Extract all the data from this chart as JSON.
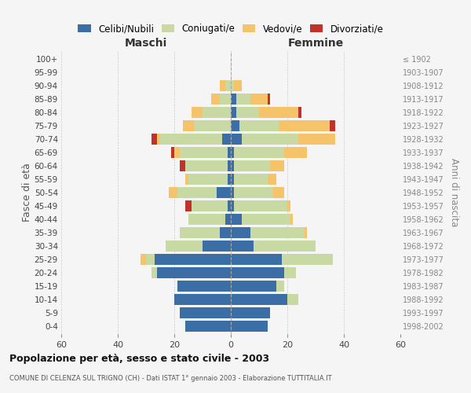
{
  "age_groups": [
    "0-4",
    "5-9",
    "10-14",
    "15-19",
    "20-24",
    "25-29",
    "30-34",
    "35-39",
    "40-44",
    "45-49",
    "50-54",
    "55-59",
    "60-64",
    "65-69",
    "70-74",
    "75-79",
    "80-84",
    "85-89",
    "90-94",
    "95-99",
    "100+"
  ],
  "birth_years": [
    "1998-2002",
    "1993-1997",
    "1988-1992",
    "1983-1987",
    "1978-1982",
    "1973-1977",
    "1968-1972",
    "1963-1967",
    "1958-1962",
    "1953-1957",
    "1948-1952",
    "1943-1947",
    "1938-1942",
    "1933-1937",
    "1928-1932",
    "1923-1927",
    "1918-1922",
    "1913-1917",
    "1908-1912",
    "1903-1907",
    "≤ 1902"
  ],
  "male": {
    "celibi": [
      16,
      18,
      20,
      19,
      26,
      27,
      10,
      4,
      2,
      1,
      5,
      1,
      1,
      1,
      3,
      0,
      0,
      0,
      0,
      0,
      0
    ],
    "coniugati": [
      0,
      0,
      0,
      0,
      2,
      3,
      13,
      14,
      13,
      13,
      14,
      14,
      15,
      17,
      22,
      13,
      10,
      4,
      2,
      0,
      0
    ],
    "vedovi": [
      0,
      0,
      0,
      0,
      0,
      2,
      0,
      0,
      0,
      0,
      3,
      1,
      0,
      2,
      1,
      4,
      4,
      3,
      2,
      0,
      0
    ],
    "divorziati": [
      0,
      0,
      0,
      0,
      0,
      0,
      0,
      0,
      0,
      2,
      0,
      0,
      2,
      1,
      2,
      0,
      0,
      0,
      0,
      0,
      0
    ]
  },
  "female": {
    "nubili": [
      13,
      14,
      20,
      16,
      19,
      18,
      8,
      7,
      4,
      1,
      1,
      1,
      1,
      1,
      4,
      3,
      2,
      2,
      0,
      0,
      0
    ],
    "coniugate": [
      0,
      0,
      4,
      3,
      4,
      18,
      22,
      19,
      17,
      19,
      14,
      12,
      13,
      18,
      20,
      14,
      8,
      5,
      1,
      0,
      0
    ],
    "vedove": [
      0,
      0,
      0,
      0,
      0,
      0,
      0,
      1,
      1,
      1,
      4,
      3,
      5,
      8,
      13,
      18,
      14,
      6,
      3,
      0,
      0
    ],
    "divorziate": [
      0,
      0,
      0,
      0,
      0,
      0,
      0,
      0,
      0,
      0,
      0,
      0,
      0,
      0,
      0,
      2,
      1,
      1,
      0,
      0,
      0
    ]
  },
  "colors": {
    "celibi": "#3b6ea5",
    "coniugati": "#c8d9a3",
    "vedovi": "#f5c46a",
    "divorziati": "#c0322a"
  },
  "xlim": 60,
  "title": "Popolazione per età, sesso e stato civile - 2003",
  "subtitle": "COMUNE DI CELENZA SUL TRIGNO (CH) - Dati ISTAT 1° gennaio 2003 - Elaborazione TUTTITALIA.IT",
  "ylabel_left": "Fasce di età",
  "ylabel_right": "Anni di nascita",
  "xlabel_left": "Maschi",
  "xlabel_right": "Femmine",
  "legend_labels": [
    "Celibi/Nubili",
    "Coniugati/e",
    "Vedovi/e",
    "Divorziati/e"
  ],
  "background_color": "#f5f5f5"
}
